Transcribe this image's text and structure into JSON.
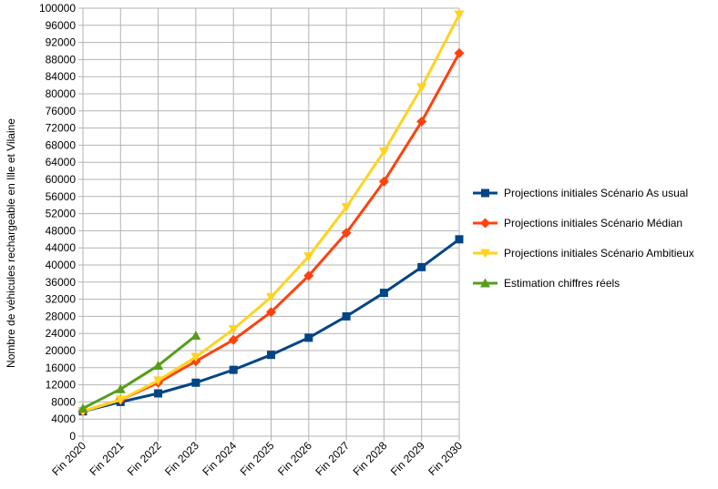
{
  "chart_data": {
    "type": "line",
    "ylabel": "Nombre de véhicules rechargeable en Ille et Vilaine",
    "xlabel": "",
    "categories": [
      "Fin 2020",
      "Fin 2021",
      "Fin 2022",
      "Fin 2023",
      "Fin 2024",
      "Fin 2025",
      "Fin 2026",
      "Fin 2027",
      "Fin 2028",
      "Fin 2029",
      "Fin 2030"
    ],
    "ylim": [
      0,
      100000
    ],
    "yticks": [
      0,
      4000,
      8000,
      12000,
      16000,
      20000,
      24000,
      28000,
      32000,
      36000,
      40000,
      44000,
      48000,
      52000,
      56000,
      60000,
      64000,
      68000,
      72000,
      76000,
      80000,
      84000,
      88000,
      92000,
      96000,
      100000
    ],
    "grid": "vertical and horizontal",
    "legend_position": "right",
    "series": [
      {
        "name": "Projections initiales Scénario As usual",
        "color": "#004586",
        "marker": "square",
        "values": [
          5800,
          8000,
          10000,
          12500,
          15500,
          19000,
          23000,
          28000,
          33500,
          39500,
          46000
        ]
      },
      {
        "name": "Projections initiales Scénario Médian",
        "color": "#ff420e",
        "marker": "diamond",
        "values": [
          5800,
          8500,
          12500,
          17500,
          22500,
          29000,
          37500,
          47500,
          59500,
          73500,
          89500
        ]
      },
      {
        "name": "Projections initiales Scénario Ambitieux",
        "color": "#ffd320",
        "marker": "triangle-down",
        "values": [
          5800,
          8500,
          13000,
          18500,
          25000,
          32500,
          42000,
          53500,
          66500,
          81500,
          98500
        ]
      },
      {
        "name": "Estimation chiffres réels",
        "color": "#579d1c",
        "marker": "triangle-up",
        "values": [
          6500,
          11000,
          16500,
          23500,
          null,
          null,
          null,
          null,
          null,
          null,
          null
        ]
      }
    ]
  }
}
